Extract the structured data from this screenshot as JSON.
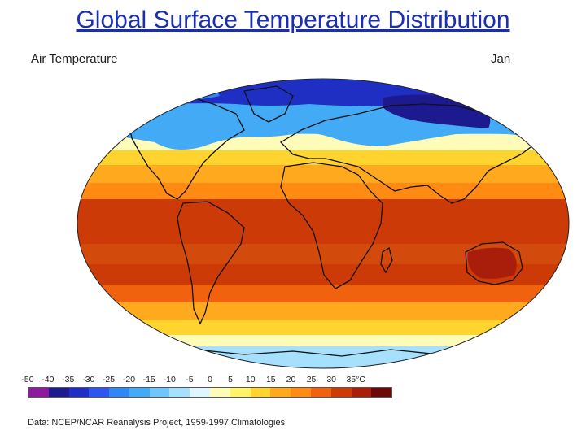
{
  "title": "Global Surface Temperature Distribution",
  "map_label": "Air Temperature",
  "month_label": "Jan",
  "source": "Data: NCEP/NCAR Reanalysis Project, 1959-1997 Climatologies",
  "colorbar": {
    "tick_labels": [
      "-50",
      "-40",
      "-35",
      "-30",
      "-25",
      "-20",
      "-15",
      "-10",
      "-5",
      "0",
      "5",
      "10",
      "15",
      "20",
      "25",
      "30",
      "35°C"
    ],
    "colors": [
      "#8b1a9c",
      "#1c1a8e",
      "#1f2fc4",
      "#2f55ee",
      "#2f86f4",
      "#43aaf6",
      "#6ec6fb",
      "#a6e0fc",
      "#dff6ff",
      "#fffbb8",
      "#fff36a",
      "#ffd42e",
      "#ffaa1e",
      "#ff8a14",
      "#f0620e",
      "#cc3a08",
      "#a81e0a",
      "#6b0808"
    ]
  },
  "zones": [
    "#2f55ee",
    "#43aaf6",
    "#6ec6fb",
    "#a6e0fc",
    "#fffbb8",
    "#ffd42e",
    "#ffaa1e",
    "#ff8a14",
    "#f0620e",
    "#cc3a08"
  ]
}
